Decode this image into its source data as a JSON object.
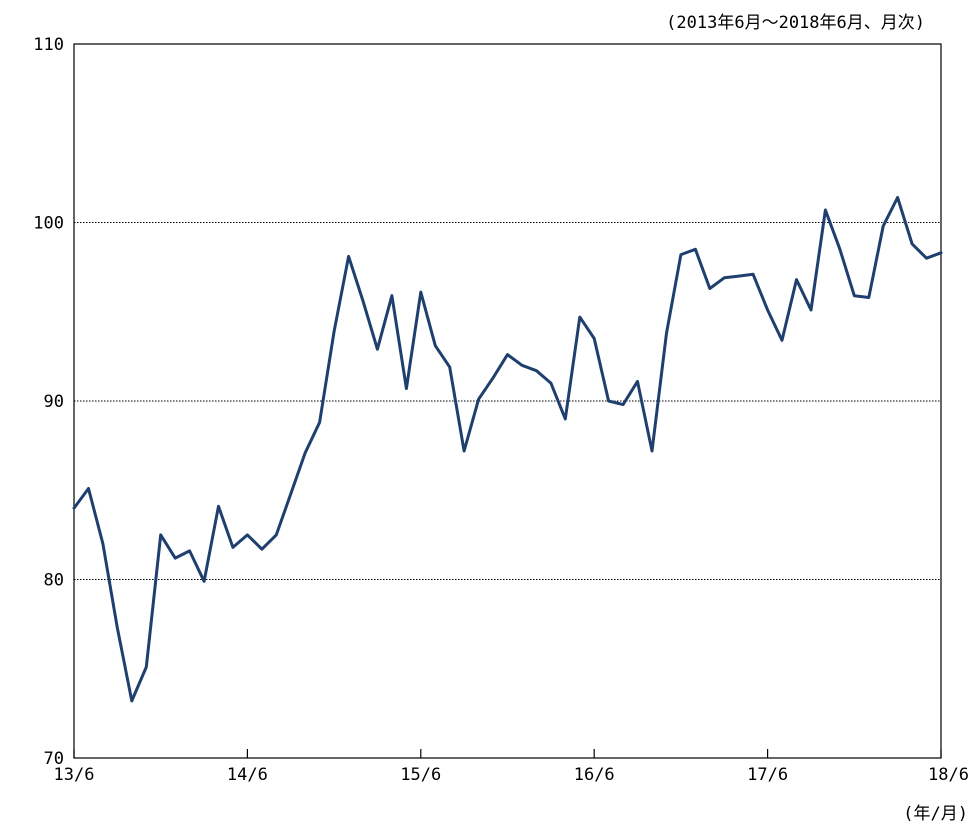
{
  "chart_data": {
    "type": "line",
    "title": "",
    "period_note": "(2013年6月〜2018年6月、月次)",
    "unit_note": "(年/月)",
    "xlabel": "",
    "ylabel": "",
    "ylim": [
      70,
      110
    ],
    "yticks": [
      70,
      80,
      90,
      100,
      110
    ],
    "xticks": [
      {
        "index": 0,
        "label": "13/6"
      },
      {
        "index": 12,
        "label": "14/6"
      },
      {
        "index": 24,
        "label": "15/6"
      },
      {
        "index": 36,
        "label": "16/6"
      },
      {
        "index": 48,
        "label": "17/6"
      },
      {
        "index": 60,
        "label": "18/6"
      }
    ],
    "grid": "horizontal-dotted",
    "line_color": "#1f3f6e",
    "series": [
      {
        "values": [
          84.0,
          85.1,
          82.0,
          77.3,
          73.2,
          75.1,
          82.5,
          81.2,
          81.6,
          79.9,
          84.1,
          81.8,
          82.5,
          81.7,
          82.5,
          84.8,
          87.1,
          88.8,
          93.9,
          98.1,
          95.6,
          92.9,
          95.9,
          90.7,
          96.1,
          93.1,
          91.9,
          87.2,
          90.1,
          91.3,
          92.6,
          92.0,
          91.7,
          91.0,
          89.0,
          94.7,
          93.5,
          90.0,
          89.8,
          91.1,
          87.2,
          93.8,
          98.2,
          98.5,
          96.3,
          96.9,
          97.0,
          97.1,
          95.1,
          93.4,
          96.8,
          95.1,
          100.7,
          98.5,
          95.9,
          95.8,
          99.8,
          101.4,
          98.8,
          98.0,
          98.3
        ]
      }
    ]
  }
}
